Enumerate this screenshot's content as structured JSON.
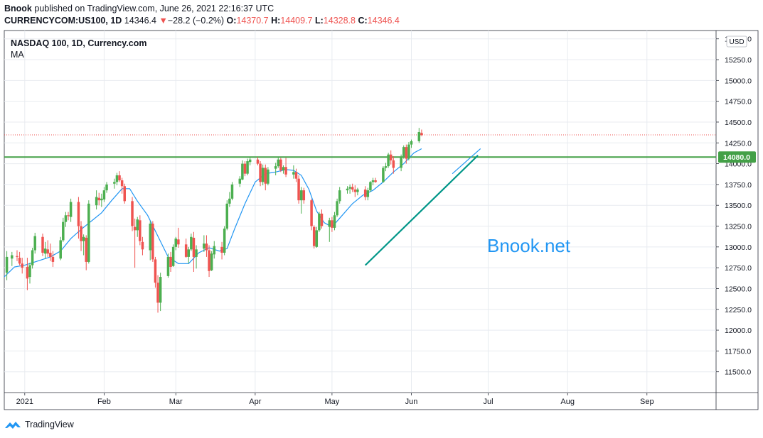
{
  "header": {
    "publisher": "Bnook",
    "published_text": "published on TradingView.com, June 26, 2021 22:16:37 UTC",
    "symbol": "CURRENCYCOM:US100, 1D",
    "last": "14346.4",
    "change": "−28.2 (−0.2%)",
    "o_label": "O:",
    "o_value": "14370.7",
    "h_label": "H:",
    "h_value": "14409.7",
    "l_label": "L:",
    "l_value": "14328.8",
    "c_label": "C:",
    "c_value": "14346.4"
  },
  "pane": {
    "title": "NASDAQ 100, 1D, Currency.com",
    "indicator": "MA",
    "currency": "USD",
    "watermark": "Bnook.net"
  },
  "footer": {
    "brand": "TradingView"
  },
  "colors": {
    "up": "#4caf50",
    "down": "#ef5350",
    "ma": "#2196f3",
    "level": "#43a047",
    "trend": "#009688",
    "grid": "#e8ebf0",
    "watermark": "#2196f3"
  },
  "chart_data": {
    "type": "candlestick",
    "title": "NASDAQ 100, 1D, Currency.com",
    "ylim": [
      11250,
      15600
    ],
    "y_ticks": [
      11500,
      11750,
      12000,
      12250,
      12500,
      12750,
      13000,
      13250,
      13500,
      13750,
      14000,
      14250,
      14500,
      14750,
      15000,
      15250,
      15500
    ],
    "y_tick_labels": [
      "11500.0",
      "11750.0",
      "12000.0",
      "12250.0",
      "12500.0",
      "12750.0",
      "13000.0",
      "13250.0",
      "13500.0",
      "13750.0",
      "14000.0",
      "14250.0",
      "14500.0",
      "14750.0",
      "15000.0",
      "15250.0",
      "15500.0"
    ],
    "x_labels": [
      {
        "label": "2021",
        "day": 0
      },
      {
        "label": "Feb",
        "day": 31
      },
      {
        "label": "Mar",
        "day": 59
      },
      {
        "label": "Apr",
        "day": 90
      },
      {
        "label": "May",
        "day": 120
      },
      {
        "label": "Jun",
        "day": 151
      },
      {
        "label": "Jul",
        "day": 181
      },
      {
        "label": "Aug",
        "day": 212
      },
      {
        "label": "Sep",
        "day": 243
      }
    ],
    "x_range_days": [
      -8,
      270
    ],
    "horizontal_level": {
      "value": 14080,
      "label": "14080.0"
    },
    "last_price_line": 14346.4,
    "trendline": {
      "from": {
        "day": 133,
        "value": 12780
      },
      "to": {
        "day": 177,
        "value": 14100
      }
    },
    "ma_trendline": {
      "from": {
        "day": 167,
        "value": 13880
      },
      "to": {
        "day": 178,
        "value": 14180
      }
    },
    "candles": [
      {
        "day": -7,
        "o": 12690,
        "h": 12950,
        "l": 12600,
        "c": 12880
      },
      {
        "day": -5,
        "o": 12860,
        "h": 12940,
        "l": 12770,
        "c": 12900
      },
      {
        "day": -3,
        "o": 12890,
        "h": 12960,
        "l": 12830,
        "c": 12880
      },
      {
        "day": -2,
        "o": 12870,
        "h": 12940,
        "l": 12780,
        "c": 12800
      },
      {
        "day": -1,
        "o": 12800,
        "h": 12870,
        "l": 12680,
        "c": 12750
      },
      {
        "day": 1,
        "o": 12760,
        "h": 12870,
        "l": 12480,
        "c": 12620
      },
      {
        "day": 2,
        "o": 12640,
        "h": 12810,
        "l": 12560,
        "c": 12780
      },
      {
        "day": 3,
        "o": 12780,
        "h": 12990,
        "l": 12740,
        "c": 12960
      },
      {
        "day": 4,
        "o": 12960,
        "h": 13170,
        "l": 12920,
        "c": 13130
      },
      {
        "day": 7,
        "o": 13120,
        "h": 13160,
        "l": 12890,
        "c": 12930
      },
      {
        "day": 8,
        "o": 12920,
        "h": 13060,
        "l": 12860,
        "c": 12980
      },
      {
        "day": 9,
        "o": 12970,
        "h": 13080,
        "l": 12880,
        "c": 12920
      },
      {
        "day": 10,
        "o": 12930,
        "h": 13040,
        "l": 12830,
        "c": 12880
      },
      {
        "day": 11,
        "o": 12880,
        "h": 12950,
        "l": 12760,
        "c": 12820
      },
      {
        "day": 14,
        "o": 12860,
        "h": 13120,
        "l": 12840,
        "c": 13080
      },
      {
        "day": 15,
        "o": 13080,
        "h": 13350,
        "l": 13060,
        "c": 13300
      },
      {
        "day": 16,
        "o": 13300,
        "h": 13420,
        "l": 13240,
        "c": 13380
      },
      {
        "day": 17,
        "o": 13380,
        "h": 13420,
        "l": 13320,
        "c": 13370
      },
      {
        "day": 18,
        "o": 13360,
        "h": 13580,
        "l": 13300,
        "c": 13540
      },
      {
        "day": 21,
        "o": 13540,
        "h": 13600,
        "l": 13100,
        "c": 13250
      },
      {
        "day": 22,
        "o": 13250,
        "h": 13310,
        "l": 12950,
        "c": 13070
      },
      {
        "day": 23,
        "o": 13070,
        "h": 13150,
        "l": 12900,
        "c": 13120
      },
      {
        "day": 24,
        "o": 13110,
        "h": 13140,
        "l": 12720,
        "c": 12820
      },
      {
        "day": 25,
        "o": 12820,
        "h": 13560,
        "l": 12800,
        "c": 13520
      },
      {
        "day": 28,
        "o": 13500,
        "h": 13680,
        "l": 13450,
        "c": 13600
      },
      {
        "day": 29,
        "o": 13590,
        "h": 13650,
        "l": 13500,
        "c": 13560
      },
      {
        "day": 30,
        "o": 13560,
        "h": 13640,
        "l": 13480,
        "c": 13580
      },
      {
        "day": 31,
        "o": 13570,
        "h": 13720,
        "l": 13540,
        "c": 13680
      },
      {
        "day": 32,
        "o": 13680,
        "h": 13780,
        "l": 13650,
        "c": 13750
      },
      {
        "day": 35,
        "o": 13760,
        "h": 13820,
        "l": 13700,
        "c": 13780
      },
      {
        "day": 36,
        "o": 13780,
        "h": 13890,
        "l": 13740,
        "c": 13860
      },
      {
        "day": 37,
        "o": 13860,
        "h": 13910,
        "l": 13780,
        "c": 13800
      },
      {
        "day": 38,
        "o": 13800,
        "h": 13830,
        "l": 13640,
        "c": 13730
      },
      {
        "day": 39,
        "o": 13730,
        "h": 13760,
        "l": 13520,
        "c": 13550
      },
      {
        "day": 42,
        "o": 13550,
        "h": 13600,
        "l": 13190,
        "c": 13250
      },
      {
        "day": 43,
        "o": 13240,
        "h": 13340,
        "l": 12750,
        "c": 13200
      },
      {
        "day": 44,
        "o": 13200,
        "h": 13360,
        "l": 13120,
        "c": 13330
      },
      {
        "day": 45,
        "o": 13320,
        "h": 13380,
        "l": 13020,
        "c": 13070
      },
      {
        "day": 46,
        "o": 13060,
        "h": 13120,
        "l": 12900,
        "c": 12970
      },
      {
        "day": 49,
        "o": 12960,
        "h": 13310,
        "l": 12840,
        "c": 13280
      },
      {
        "day": 50,
        "o": 13280,
        "h": 13310,
        "l": 12820,
        "c": 12850
      },
      {
        "day": 51,
        "o": 12850,
        "h": 12880,
        "l": 12510,
        "c": 12570
      },
      {
        "day": 52,
        "o": 12570,
        "h": 12660,
        "l": 12210,
        "c": 12330
      },
      {
        "day": 53,
        "o": 12330,
        "h": 12690,
        "l": 12230,
        "c": 12640
      },
      {
        "day": 56,
        "o": 12650,
        "h": 12920,
        "l": 12630,
        "c": 12880
      },
      {
        "day": 57,
        "o": 12880,
        "h": 12940,
        "l": 12700,
        "c": 12760
      },
      {
        "day": 58,
        "o": 12770,
        "h": 13030,
        "l": 12760,
        "c": 13000
      },
      {
        "day": 59,
        "o": 13000,
        "h": 13120,
        "l": 12960,
        "c": 13100
      },
      {
        "day": 60,
        "o": 13090,
        "h": 13230,
        "l": 12990,
        "c": 13030
      },
      {
        "day": 63,
        "o": 13030,
        "h": 13100,
        "l": 12870,
        "c": 12880
      },
      {
        "day": 64,
        "o": 12880,
        "h": 13000,
        "l": 12800,
        "c": 12970
      },
      {
        "day": 65,
        "o": 12970,
        "h": 13160,
        "l": 12950,
        "c": 13120
      },
      {
        "day": 66,
        "o": 13110,
        "h": 13180,
        "l": 12700,
        "c": 12880
      },
      {
        "day": 67,
        "o": 12880,
        "h": 13020,
        "l": 12740,
        "c": 12970
      },
      {
        "day": 70,
        "o": 12980,
        "h": 13140,
        "l": 12940,
        "c": 13040
      },
      {
        "day": 71,
        "o": 13040,
        "h": 13140,
        "l": 12880,
        "c": 12960
      },
      {
        "day": 72,
        "o": 12960,
        "h": 13020,
        "l": 12640,
        "c": 12710
      },
      {
        "day": 73,
        "o": 12720,
        "h": 12950,
        "l": 12710,
        "c": 12920
      },
      {
        "day": 74,
        "o": 12910,
        "h": 13070,
        "l": 12860,
        "c": 13010
      },
      {
        "day": 77,
        "o": 13000,
        "h": 13060,
        "l": 12850,
        "c": 12930
      },
      {
        "day": 78,
        "o": 12930,
        "h": 13250,
        "l": 12900,
        "c": 13220
      },
      {
        "day": 79,
        "o": 13220,
        "h": 13560,
        "l": 13200,
        "c": 13520
      },
      {
        "day": 80,
        "o": 13520,
        "h": 13660,
        "l": 13480,
        "c": 13580
      },
      {
        "day": 81,
        "o": 13580,
        "h": 13780,
        "l": 13560,
        "c": 13750
      },
      {
        "day": 84,
        "o": 13760,
        "h": 13850,
        "l": 13720,
        "c": 13820
      },
      {
        "day": 85,
        "o": 13810,
        "h": 14040,
        "l": 13800,
        "c": 14000
      },
      {
        "day": 86,
        "o": 14000,
        "h": 14030,
        "l": 13850,
        "c": 13880
      },
      {
        "day": 87,
        "o": 13880,
        "h": 14060,
        "l": 13860,
        "c": 14030
      },
      {
        "day": 88,
        "o": 14020,
        "h": 14080,
        "l": 13980,
        "c": 14050
      },
      {
        "day": 91,
        "o": 14050,
        "h": 14080,
        "l": 13980,
        "c": 14000
      },
      {
        "day": 92,
        "o": 14000,
        "h": 14030,
        "l": 13730,
        "c": 13780
      },
      {
        "day": 93,
        "o": 13780,
        "h": 13990,
        "l": 13740,
        "c": 13950
      },
      {
        "day": 94,
        "o": 13950,
        "h": 13990,
        "l": 13680,
        "c": 13760
      },
      {
        "day": 95,
        "o": 13760,
        "h": 13960,
        "l": 13740,
        "c": 13930
      },
      {
        "day": 98,
        "o": 13940,
        "h": 14010,
        "l": 13860,
        "c": 13970
      },
      {
        "day": 99,
        "o": 13970,
        "h": 14080,
        "l": 13950,
        "c": 14050
      },
      {
        "day": 100,
        "o": 14050,
        "h": 14070,
        "l": 13900,
        "c": 13920
      },
      {
        "day": 101,
        "o": 13920,
        "h": 13980,
        "l": 13880,
        "c": 13960
      },
      {
        "day": 102,
        "o": 13960,
        "h": 14070,
        "l": 13840,
        "c": 13870
      },
      {
        "day": 105,
        "o": 13870,
        "h": 13980,
        "l": 13820,
        "c": 13900
      },
      {
        "day": 106,
        "o": 13900,
        "h": 13940,
        "l": 13780,
        "c": 13820
      },
      {
        "day": 107,
        "o": 13820,
        "h": 13860,
        "l": 13520,
        "c": 13560
      },
      {
        "day": 108,
        "o": 13560,
        "h": 13720,
        "l": 13400,
        "c": 13680
      },
      {
        "day": 109,
        "o": 13680,
        "h": 13710,
        "l": 13520,
        "c": 13560
      },
      {
        "day": 112,
        "o": 13560,
        "h": 13580,
        "l": 13200,
        "c": 13250
      },
      {
        "day": 113,
        "o": 13240,
        "h": 13260,
        "l": 12980,
        "c": 13010
      },
      {
        "day": 114,
        "o": 13000,
        "h": 13240,
        "l": 12990,
        "c": 13200
      },
      {
        "day": 115,
        "o": 13200,
        "h": 13420,
        "l": 13180,
        "c": 13400
      },
      {
        "day": 116,
        "o": 13400,
        "h": 13450,
        "l": 13220,
        "c": 13250
      },
      {
        "day": 119,
        "o": 13240,
        "h": 13350,
        "l": 13060,
        "c": 13320
      },
      {
        "day": 120,
        "o": 13320,
        "h": 13360,
        "l": 13180,
        "c": 13230
      },
      {
        "day": 121,
        "o": 13230,
        "h": 13420,
        "l": 13200,
        "c": 13380
      },
      {
        "day": 122,
        "o": 13380,
        "h": 13580,
        "l": 13360,
        "c": 13550
      },
      {
        "day": 123,
        "o": 13550,
        "h": 13720,
        "l": 13520,
        "c": 13680
      },
      {
        "day": 126,
        "o": 13680,
        "h": 13730,
        "l": 13640,
        "c": 13700
      },
      {
        "day": 127,
        "o": 13700,
        "h": 13750,
        "l": 13640,
        "c": 13720
      },
      {
        "day": 128,
        "o": 13720,
        "h": 13760,
        "l": 13660,
        "c": 13690
      },
      {
        "day": 129,
        "o": 13690,
        "h": 13740,
        "l": 13600,
        "c": 13660
      },
      {
        "day": 130,
        "o": 13660,
        "h": 13710,
        "l": 13620,
        "c": 13690
      },
      {
        "day": 133,
        "o": 13690,
        "h": 13730,
        "l": 13560,
        "c": 13600
      },
      {
        "day": 134,
        "o": 13600,
        "h": 13710,
        "l": 13560,
        "c": 13680
      },
      {
        "day": 135,
        "o": 13680,
        "h": 13790,
        "l": 13660,
        "c": 13780
      },
      {
        "day": 136,
        "o": 13780,
        "h": 13830,
        "l": 13740,
        "c": 13800
      },
      {
        "day": 137,
        "o": 13800,
        "h": 13830,
        "l": 13770,
        "c": 13780
      },
      {
        "day": 140,
        "o": 13780,
        "h": 13970,
        "l": 13770,
        "c": 13950
      },
      {
        "day": 141,
        "o": 13950,
        "h": 14010,
        "l": 13910,
        "c": 13970
      },
      {
        "day": 142,
        "o": 13970,
        "h": 14130,
        "l": 13950,
        "c": 14110
      },
      {
        "day": 143,
        "o": 14110,
        "h": 14160,
        "l": 13990,
        "c": 14040
      },
      {
        "day": 144,
        "o": 14040,
        "h": 14090,
        "l": 13880,
        "c": 13950
      },
      {
        "day": 147,
        "o": 13950,
        "h": 14110,
        "l": 13910,
        "c": 14080
      },
      {
        "day": 148,
        "o": 14080,
        "h": 14220,
        "l": 14060,
        "c": 14200
      },
      {
        "day": 149,
        "o": 14200,
        "h": 14230,
        "l": 14000,
        "c": 14060
      },
      {
        "day": 150,
        "o": 14060,
        "h": 14260,
        "l": 14040,
        "c": 14230
      },
      {
        "day": 151,
        "o": 14230,
        "h": 14290,
        "l": 14190,
        "c": 14270
      },
      {
        "day": 154,
        "o": 14270,
        "h": 14430,
        "l": 14250,
        "c": 14380
      },
      {
        "day": 155,
        "o": 14370,
        "h": 14410,
        "l": 14330,
        "c": 14346
      }
    ],
    "ma": [
      {
        "day": -8,
        "value": 12640
      },
      {
        "day": -4,
        "value": 12760
      },
      {
        "day": 0,
        "value": 12780
      },
      {
        "day": 5,
        "value": 12830
      },
      {
        "day": 10,
        "value": 12880
      },
      {
        "day": 14,
        "value": 12950
      },
      {
        "day": 18,
        "value": 13100
      },
      {
        "day": 22,
        "value": 13210
      },
      {
        "day": 26,
        "value": 13310
      },
      {
        "day": 30,
        "value": 13410
      },
      {
        "day": 34,
        "value": 13560
      },
      {
        "day": 38,
        "value": 13700
      },
      {
        "day": 41,
        "value": 13700
      },
      {
        "day": 44,
        "value": 13550
      },
      {
        "day": 48,
        "value": 13380
      },
      {
        "day": 52,
        "value": 13130
      },
      {
        "day": 56,
        "value": 12880
      },
      {
        "day": 60,
        "value": 12800
      },
      {
        "day": 64,
        "value": 12800
      },
      {
        "day": 68,
        "value": 12930
      },
      {
        "day": 72,
        "value": 12990
      },
      {
        "day": 76,
        "value": 12950
      },
      {
        "day": 79,
        "value": 12980
      },
      {
        "day": 82,
        "value": 13220
      },
      {
        "day": 86,
        "value": 13520
      },
      {
        "day": 90,
        "value": 13780
      },
      {
        "day": 94,
        "value": 13880
      },
      {
        "day": 98,
        "value": 13900
      },
      {
        "day": 102,
        "value": 13930
      },
      {
        "day": 105,
        "value": 13920
      },
      {
        "day": 108,
        "value": 13860
      },
      {
        "day": 111,
        "value": 13690
      },
      {
        "day": 114,
        "value": 13430
      },
      {
        "day": 117,
        "value": 13290
      },
      {
        "day": 120,
        "value": 13240
      },
      {
        "day": 124,
        "value": 13380
      },
      {
        "day": 128,
        "value": 13520
      },
      {
        "day": 132,
        "value": 13620
      },
      {
        "day": 136,
        "value": 13680
      },
      {
        "day": 140,
        "value": 13780
      },
      {
        "day": 144,
        "value": 13900
      },
      {
        "day": 148,
        "value": 14000
      },
      {
        "day": 152,
        "value": 14130
      },
      {
        "day": 155,
        "value": 14180
      }
    ]
  }
}
